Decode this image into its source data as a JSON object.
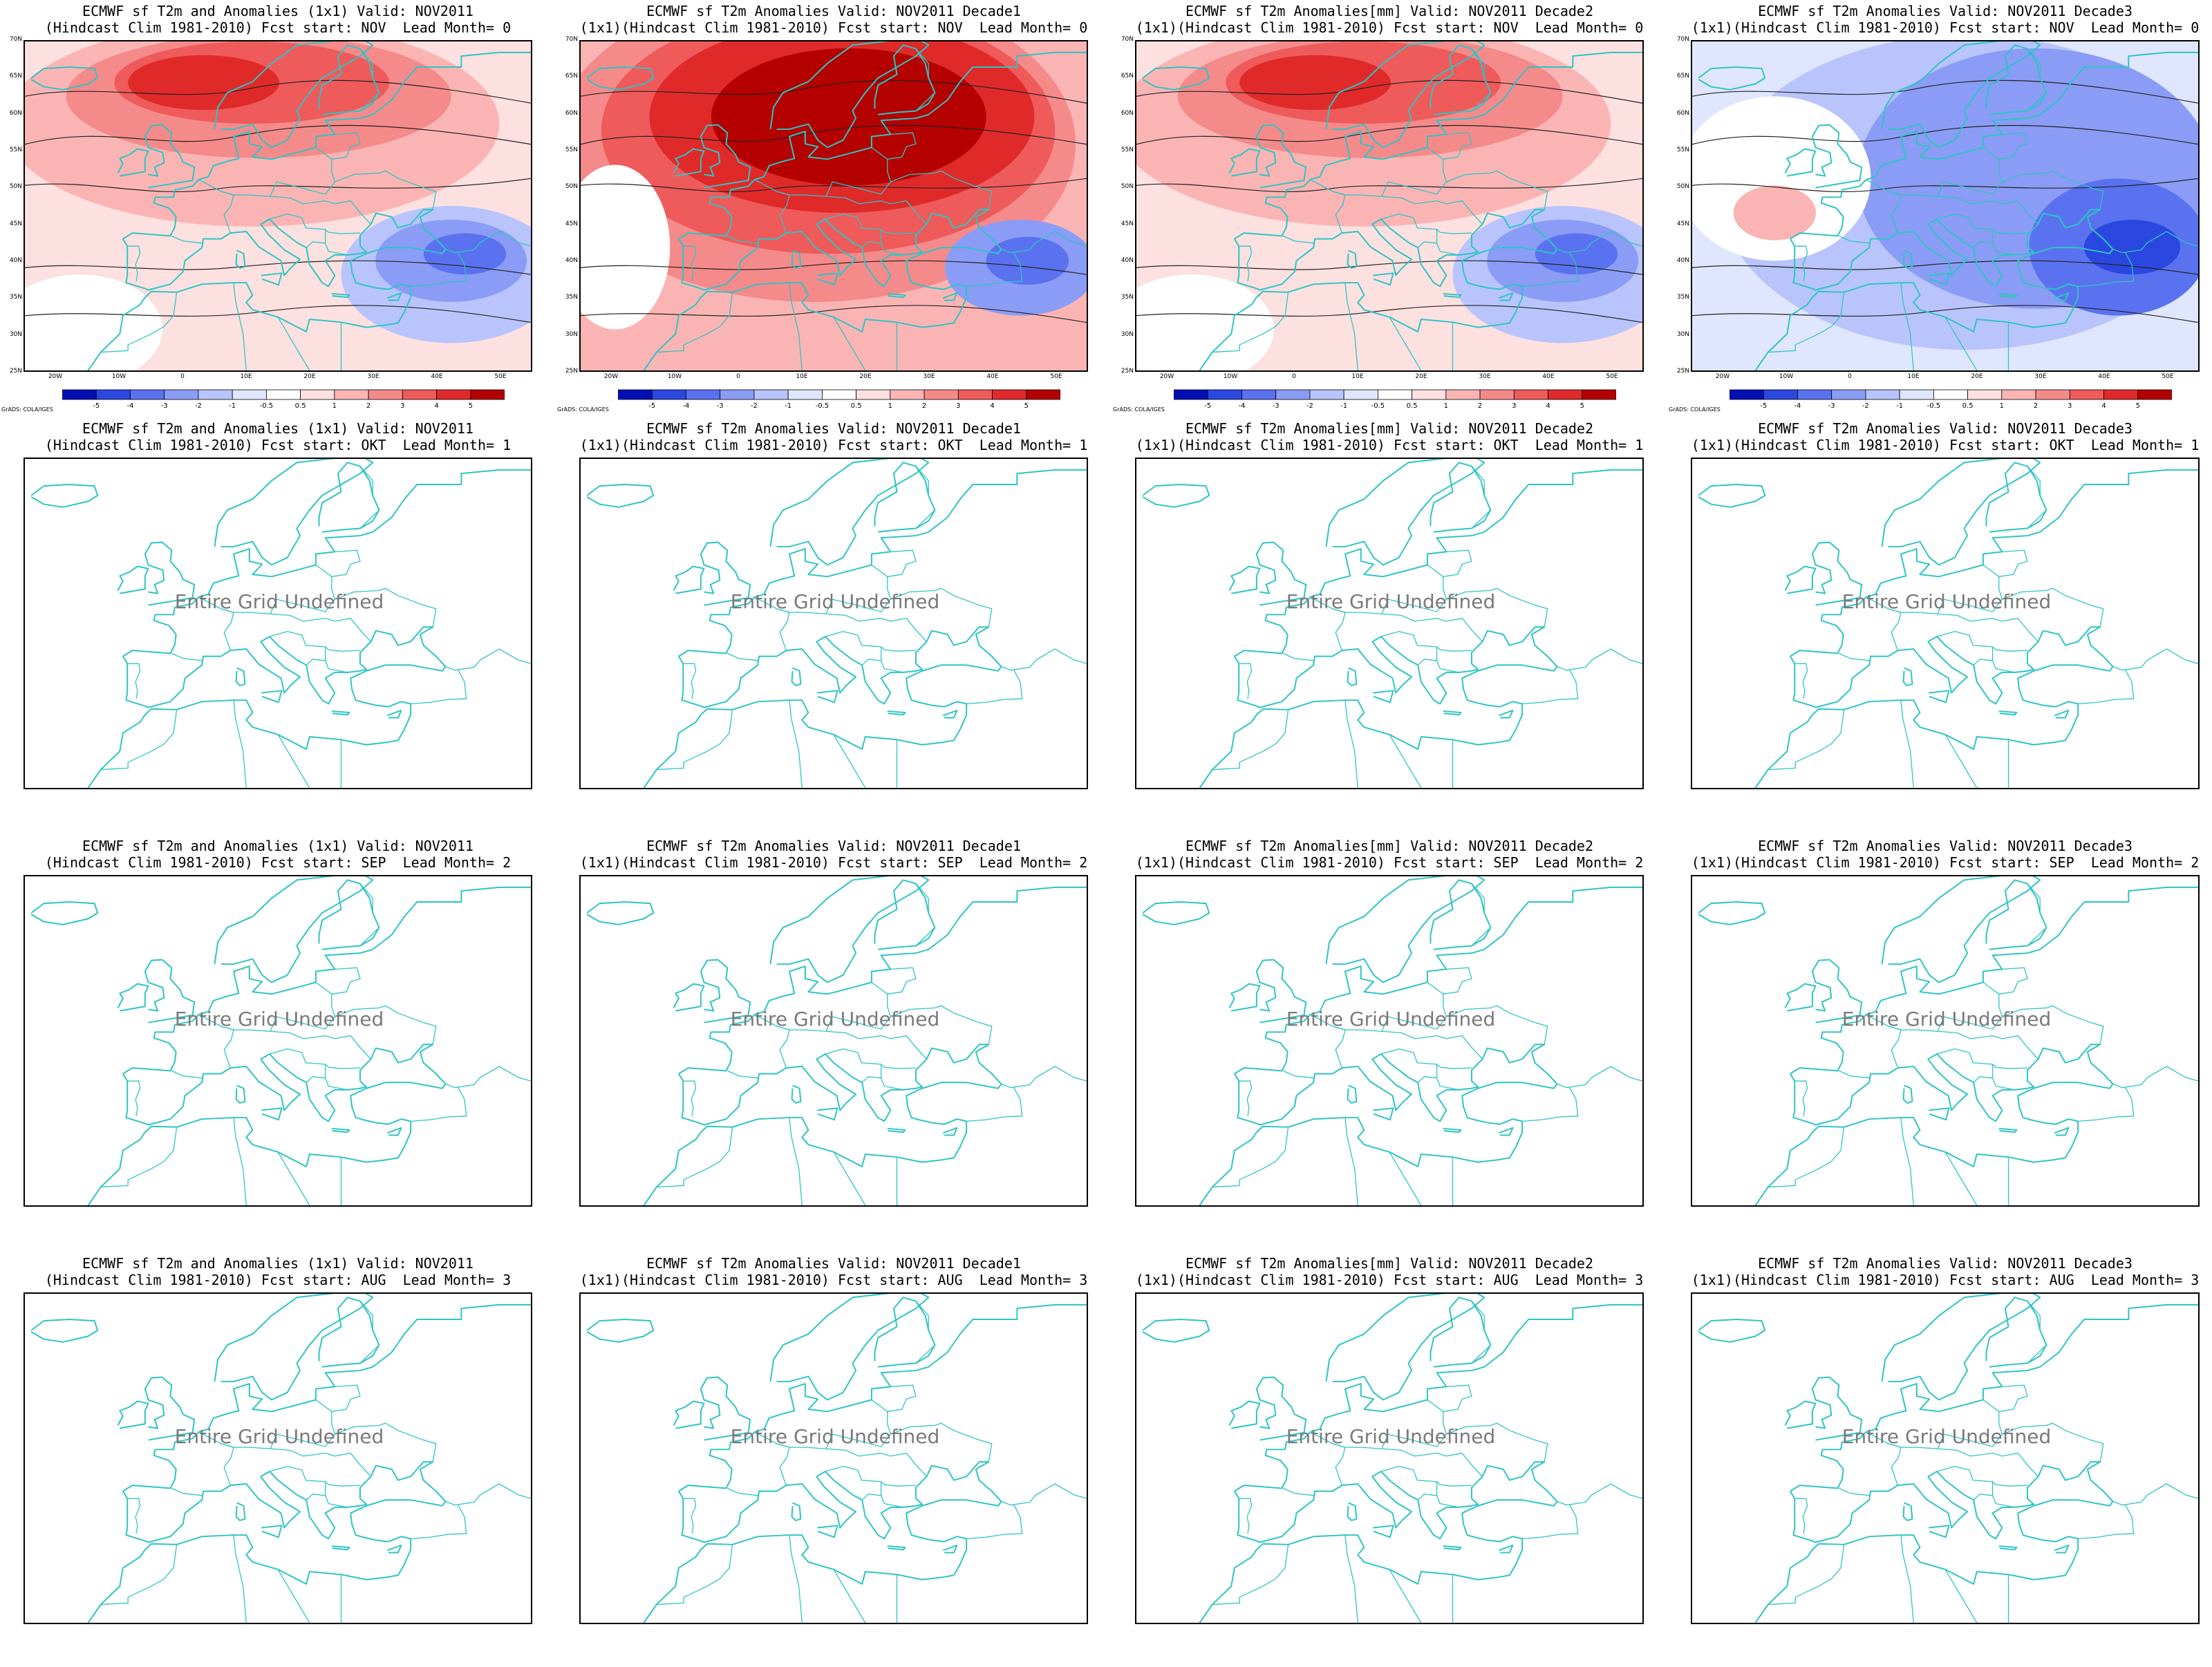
{
  "undefined_text": "Entire Grid Undefined",
  "credit": "GrADS: COLA/IGES",
  "lat_ticks": [
    "70N",
    "65N",
    "60N",
    "55N",
    "50N",
    "45N",
    "40N",
    "35N",
    "30N",
    "25N"
  ],
  "lon_ticks": [
    "20W",
    "10W",
    "0",
    "10E",
    "20E",
    "30E",
    "40E",
    "50E"
  ],
  "colorbar_labels": [
    "-5",
    "-4",
    "-3",
    "-2",
    "-1",
    "-0.5",
    "0.5",
    "1",
    "2",
    "3",
    "4",
    "5"
  ],
  "colors": {
    "coast": "#2ec4c4",
    "positive": [
      "#fde0e0",
      "#fbb4b4",
      "#f58a8a",
      "#ef5a5a",
      "#e02a2a",
      "#b50000"
    ],
    "negative": [
      "#e0e6fd",
      "#b8c4fb",
      "#8a9cf5",
      "#5a72ef",
      "#2a48e0",
      "#0010b5"
    ]
  },
  "panels": [
    {
      "line1": "ECMWF sf T2m and Anomalies (1x1) Valid: NOV2011",
      "line2": "(Hindcast Clim 1981-2010) Fcst start: NOV  Lead Month= 0",
      "defined": true,
      "anomaly": "warm"
    },
    {
      "line1": "ECMWF sf T2m Anomalies Valid: NOV2011 Decade1",
      "line2": "(1x1)(Hindcast Clim 1981-2010) Fcst start: NOV  Lead Month= 0",
      "defined": true,
      "anomaly": "hot"
    },
    {
      "line1": "ECMWF sf T2m Anomalies[mm] Valid: NOV2011 Decade2",
      "line2": "(1x1)(Hindcast Clim 1981-2010) Fcst start: NOV  Lead Month= 0",
      "defined": true,
      "anomaly": "warm"
    },
    {
      "line1": "ECMWF sf T2m Anomalies Valid: NOV2011 Decade3",
      "line2": "(1x1)(Hindcast Clim 1981-2010) Fcst start: NOV  Lead Month= 0",
      "defined": true,
      "anomaly": "cold"
    },
    {
      "line1": "ECMWF sf T2m and Anomalies (1x1) Valid: NOV2011",
      "line2": "(Hindcast Clim 1981-2010) Fcst start: OKT  Lead Month= 1",
      "defined": false
    },
    {
      "line1": "ECMWF sf T2m Anomalies Valid: NOV2011 Decade1",
      "line2": "(1x1)(Hindcast Clim 1981-2010) Fcst start: OKT  Lead Month= 1",
      "defined": false
    },
    {
      "line1": "ECMWF sf T2m Anomalies[mm] Valid: NOV2011 Decade2",
      "line2": "(1x1)(Hindcast Clim 1981-2010) Fcst start: OKT  Lead Month= 1",
      "defined": false
    },
    {
      "line1": "ECMWF sf T2m Anomalies Valid: NOV2011 Decade3",
      "line2": "(1x1)(Hindcast Clim 1981-2010) Fcst start: OKT  Lead Month= 1",
      "defined": false
    },
    {
      "line1": "ECMWF sf T2m and Anomalies (1x1) Valid: NOV2011",
      "line2": "(Hindcast Clim 1981-2010) Fcst start: SEP  Lead Month= 2",
      "defined": false
    },
    {
      "line1": "ECMWF sf T2m Anomalies Valid: NOV2011 Decade1",
      "line2": "(1x1)(Hindcast Clim 1981-2010) Fcst start: SEP  Lead Month= 2",
      "defined": false
    },
    {
      "line1": "ECMWF sf T2m Anomalies[mm] Valid: NOV2011 Decade2",
      "line2": "(1x1)(Hindcast Clim 1981-2010) Fcst start: SEP  Lead Month= 2",
      "defined": false
    },
    {
      "line1": "ECMWF sf T2m Anomalies Valid: NOV2011 Decade3",
      "line2": "(1x1)(Hindcast Clim 1981-2010) Fcst start: SEP  Lead Month= 2",
      "defined": false
    },
    {
      "line1": "ECMWF sf T2m and Anomalies (1x1) Valid: NOV2011",
      "line2": "(Hindcast Clim 1981-2010) Fcst start: AUG  Lead Month= 3",
      "defined": false
    },
    {
      "line1": "ECMWF sf T2m Anomalies Valid: NOV2011 Decade1",
      "line2": "(1x1)(Hindcast Clim 1981-2010) Fcst start: AUG  Lead Month= 3",
      "defined": false
    },
    {
      "line1": "ECMWF sf T2m Anomalies[mm] Valid: NOV2011 Decade2",
      "line2": "(1x1)(Hindcast Clim 1981-2010) Fcst start: AUG  Lead Month= 3",
      "defined": false
    },
    {
      "line1": "ECMWF sf T2m Anomalies Valid: NOV2011 Decade3",
      "line2": "(1x1)(Hindcast Clim 1981-2010) Fcst start: AUG  Lead Month= 3",
      "defined": false
    }
  ]
}
